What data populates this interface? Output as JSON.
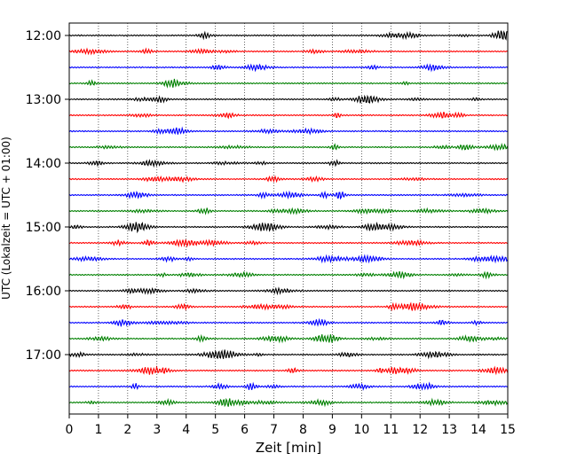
{
  "chart_data": {
    "type": "line",
    "title": "",
    "xlabel": "Zeit  [min]",
    "ylabel": "UTC (Lokalzeit = UTC + 01:00)",
    "xlim": [
      0,
      15
    ],
    "x_ticks": [
      0,
      1,
      2,
      3,
      4,
      5,
      6,
      7,
      8,
      9,
      10,
      11,
      12,
      13,
      14,
      15
    ],
    "y_tick_labels": [
      "12:00",
      "13:00",
      "14:00",
      "15:00",
      "16:00",
      "17:00"
    ],
    "trace_start_times": [
      "12:00",
      "12:15",
      "12:30",
      "12:45",
      "13:00",
      "13:15",
      "13:30",
      "13:45",
      "14:00",
      "14:15",
      "14:30",
      "14:45",
      "15:00",
      "15:15",
      "15:30",
      "15:45",
      "16:00",
      "16:15",
      "16:30",
      "16:45",
      "17:00",
      "17:15",
      "17:30",
      "17:45"
    ],
    "trace_colors": [
      "#000000",
      "#ff0000",
      "#0000ff",
      "#008000"
    ],
    "trace_minutes": 15,
    "grid": "vertical-dotted"
  }
}
